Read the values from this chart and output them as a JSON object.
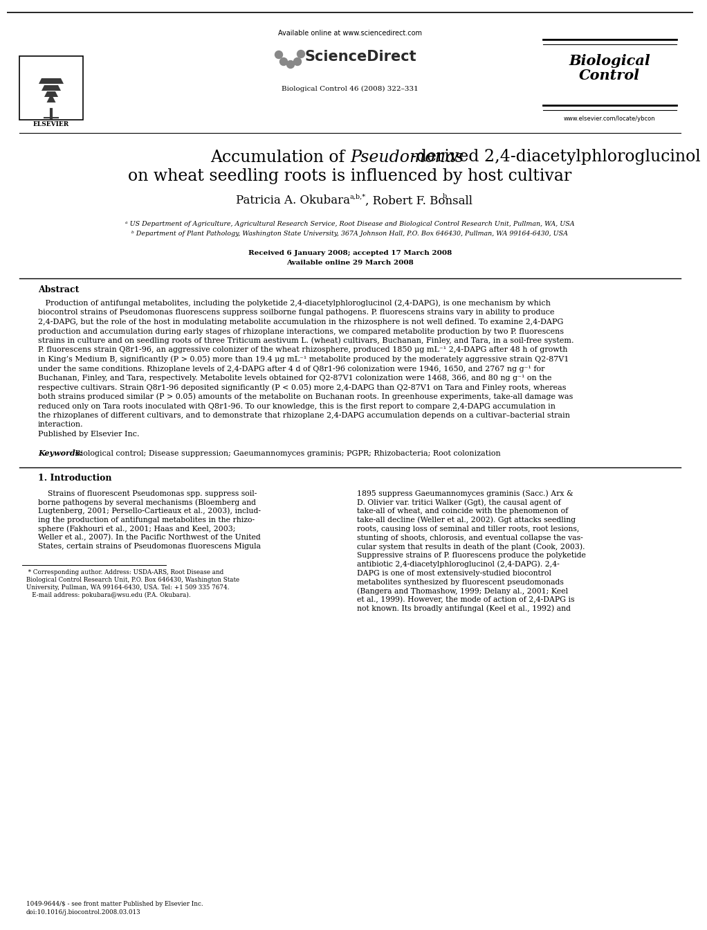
{
  "bg_color": "#ffffff",
  "header_available_online": "Available online at www.sciencedirect.com",
  "header_journal_info": "Biological Control 46 (2008) 322–331",
  "header_journal_name_line1": "Biological",
  "header_journal_name_line2": "Control",
  "header_journal_url": "www.elsevier.com/locate/ybcon",
  "title_prefix": "Accumulation of ",
  "title_italic": "Pseudomonas",
  "title_suffix": "-derived 2,4-diacetylphloroglucinol",
  "title_line2": "on wheat seedling roots is influenced by host cultivar",
  "author1": "Patricia A. Okubara",
  "author1_sup": "a,b,*",
  "author2": ", Robert F. Bonsall",
  "author2_sup": "b",
  "affil1": "ᵃ US Department of Agriculture, Agricultural Research Service, Root Disease and Biological Control Research Unit, Pullman, WA, USA",
  "affil2": "ᵇ Department of Plant Pathology, Washington State University, 367A Johnson Hall, P.O. Box 646430, Pullman, WA 99164-6430, USA",
  "received": "Received 6 January 2008; accepted 17 March 2008",
  "available": "Available online 29 March 2008",
  "abstract_label": "Abstract",
  "abs_lines": [
    "   Production of antifungal metabolites, including the polyketide 2,4-diacetylphloroglucinol (2,4-DAPG), is one mechanism by which",
    "biocontrol strains of Pseudomonas fluorescens suppress soilborne fungal pathogens. P. fluorescens strains vary in ability to produce",
    "2,4-DAPG, but the role of the host in modulating metabolite accumulation in the rhizosphere is not well defined. To examine 2,4-DAPG",
    "production and accumulation during early stages of rhizoplane interactions, we compared metabolite production by two P. fluorescens",
    "strains in culture and on seedling roots of three Triticum aestivum L. (wheat) cultivars, Buchanan, Finley, and Tara, in a soil-free system.",
    "P. fluorescens strain Q8r1-96, an aggressive colonizer of the wheat rhizosphere, produced 1850 μg mL⁻¹ 2,4-DAPG after 48 h of growth",
    "in King’s Medium B, significantly (P > 0.05) more than 19.4 μg mL⁻¹ metabolite produced by the moderately aggressive strain Q2-87V1",
    "under the same conditions. Rhizoplane levels of 2,4-DAPG after 4 d of Q8r1-96 colonization were 1946, 1650, and 2767 ng g⁻¹ for",
    "Buchanan, Finley, and Tara, respectively. Metabolite levels obtained for Q2-87V1 colonization were 1468, 366, and 80 ng g⁻¹ on the",
    "respective cultivars. Strain Q8r1-96 deposited significantly (P < 0.05) more 2,4-DAPG than Q2-87V1 on Tara and Finley roots, whereas",
    "both strains produced similar (P > 0.05) amounts of the metabolite on Buchanan roots. In greenhouse experiments, take-all damage was",
    "reduced only on Tara roots inoculated with Q8r1-96. To our knowledge, this is the first report to compare 2,4-DAPG accumulation in",
    "the rhizoplanes of different cultivars, and to demonstrate that rhizoplane 2,4-DAPG accumulation depends on a cultivar–bacterial strain",
    "interaction.",
    "Published by Elsevier Inc."
  ],
  "keywords_label": "Keywords: ",
  "keywords_text": " Biological control; Disease suppression; Gaeumannomyces graminis; PGPR; Rhizobacteria; Root colonization",
  "section1_title": "1. Introduction",
  "left_col_lines": [
    "    Strains of fluorescent Pseudomonas spp. suppress soil-",
    "borne pathogens by several mechanisms (Bloemberg and",
    "Lugtenberg, 2001; Persello-Cartieaux et al., 2003), includ-",
    "ing the production of antifungal metabolites in the rhizo-",
    "sphere (Fakhouri et al., 2001; Haas and Keel, 2003;",
    "Weller et al., 2007). In the Pacific Northwest of the United",
    "States, certain strains of Pseudomonas fluorescens Migula"
  ],
  "right_col_lines": [
    "1895 suppress Gaeumannomyces graminis (Sacc.) Arx &",
    "D. Olivier var. tritici Walker (Ggt), the causal agent of",
    "take-all of wheat, and coincide with the phenomenon of",
    "take-all decline (Weller et al., 2002). Ggt attacks seedling",
    "roots, causing loss of seminal and tiller roots, root lesions,",
    "stunting of shoots, chlorosis, and eventual collapse the vas-",
    "cular system that results in death of the plant (Cook, 2003).",
    "Suppressive strains of P. fluorescens produce the polyketide",
    "antibiotic 2,4-diacetylphloroglucinol (2,4-DAPG). 2,4-",
    "DAPG is one of most extensively-studied biocontrol",
    "metabolites synthesized by fluorescent pseudomonads",
    "(Bangera and Thomashow, 1999; Delany al., 2001; Keel",
    "et al., 1999). However, the mode of action of 2,4-DAPG is",
    "not known. Its broadly antifungal (Keel et al., 1992) and"
  ],
  "footnote_lines": [
    " * Corresponding author. Address: USDA-ARS, Root Disease and",
    "Biological Control Research Unit, P.O. Box 646430, Washington State",
    "University, Pullman, WA 99164-6430, USA. Tel: +1 509 335 7674.",
    "   E-mail address: pokubara@wsu.edu (P.A. Okubara)."
  ],
  "issn_line": "1049-9644/$ - see front matter Published by Elsevier Inc.",
  "doi_line": "doi:10.1016/j.biocontrol.2008.03.013"
}
